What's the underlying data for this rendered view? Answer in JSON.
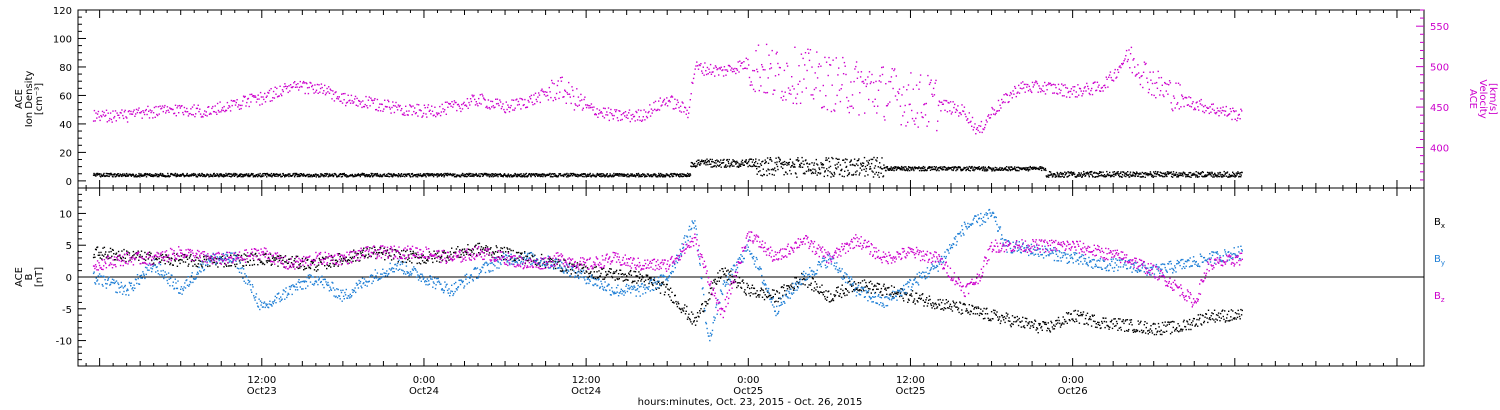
{
  "colors": {
    "density": "#000000",
    "velocity": "#cc00cc",
    "bx": "#000000",
    "by": "#1f7fd6",
    "bz": "#cc00cc",
    "axis": "#000000"
  },
  "chart_data": [
    {
      "type": "scatter",
      "panel": "top",
      "left_axis": {
        "label_lines": [
          "ACE",
          "Ion Density",
          "[cm⁻³]"
        ],
        "ylim": [
          -5,
          120
        ],
        "ticks": [
          0,
          20,
          40,
          60,
          80,
          100,
          120
        ]
      },
      "right_axis": {
        "label_lines": [
          "ACE",
          "Velocity",
          "[km/s]"
        ],
        "ylim": [
          350,
          570
        ],
        "ticks": [
          400,
          450,
          500,
          550
        ]
      },
      "series": [
        {
          "key": "density",
          "axis": "left",
          "segments": [
            {
              "t0": -0.5,
              "t1": 43.7,
              "base": 4.5,
              "jitter": 1.2
            },
            {
              "t0": 43.7,
              "t1": 48.5,
              "base": 13,
              "jitter": 3
            },
            {
              "t0": 48.5,
              "t1": 58,
              "base": 10,
              "jitter": 7
            },
            {
              "t0": 58,
              "t1": 70,
              "base": 9,
              "jitter": 1.5
            },
            {
              "t0": 70,
              "t1": 84.5,
              "base": 5,
              "jitter": 2
            }
          ]
        },
        {
          "key": "velocity",
          "axis": "right",
          "anchors": [
            [
              -0.5,
              440
            ],
            [
              2,
              440
            ],
            [
              4,
              445
            ],
            [
              6,
              448
            ],
            [
              8,
              445
            ],
            [
              10,
              455
            ],
            [
              12,
              462
            ],
            [
              14,
              475
            ],
            [
              16,
              475
            ],
            [
              18,
              460
            ],
            [
              20,
              455
            ],
            [
              22,
              450
            ],
            [
              24,
              445
            ],
            [
              26,
              450
            ],
            [
              28,
              460
            ],
            [
              30,
              450
            ],
            [
              32,
              460
            ],
            [
              34,
              475
            ],
            [
              36,
              450
            ],
            [
              38,
              440
            ],
            [
              40,
              440
            ],
            [
              42,
              460
            ],
            [
              43.5,
              445
            ],
            [
              44,
              500
            ],
            [
              46,
              495
            ],
            [
              48,
              505
            ],
            [
              50,
              490
            ],
            [
              52,
              490
            ],
            [
              54,
              480
            ],
            [
              56,
              475
            ],
            [
              58,
              470
            ],
            [
              60,
              460
            ],
            [
              62,
              455
            ],
            [
              64,
              445
            ],
            [
              65,
              420
            ],
            [
              66,
              445
            ],
            [
              68,
              475
            ],
            [
              70,
              475
            ],
            [
              72,
              470
            ],
            [
              74,
              475
            ],
            [
              75,
              490
            ],
            [
              76,
              515
            ],
            [
              78,
              480
            ],
            [
              80,
              460
            ],
            [
              82,
              450
            ],
            [
              84.5,
              440
            ]
          ],
          "spread_segments": [
            [
              33,
              36,
              15
            ],
            [
              48,
              62,
              35
            ],
            [
              76,
              80,
              20
            ]
          ]
        }
      ]
    },
    {
      "type": "scatter",
      "panel": "bottom",
      "left_axis": {
        "label_lines": [
          "ACE",
          "B",
          "[nT]"
        ],
        "ylim": [
          -14,
          14
        ],
        "ticks": [
          -10,
          -5,
          0,
          5,
          10
        ]
      },
      "series": [
        {
          "key": "bx",
          "name": "Bx",
          "label_base": "B",
          "label_sub": "x",
          "anchors": [
            [
              -0.5,
              4
            ],
            [
              4,
              3
            ],
            [
              8,
              2.5
            ],
            [
              12,
              3
            ],
            [
              16,
              2
            ],
            [
              20,
              4
            ],
            [
              24,
              3
            ],
            [
              28,
              4.5
            ],
            [
              32,
              3
            ],
            [
              36,
              1
            ],
            [
              40,
              0
            ],
            [
              42,
              -2
            ],
            [
              44,
              -7
            ],
            [
              46,
              1
            ],
            [
              48,
              -2
            ],
            [
              50,
              -3
            ],
            [
              52,
              0
            ],
            [
              54,
              -3
            ],
            [
              56,
              -1
            ],
            [
              58,
              -2
            ],
            [
              60,
              -3
            ],
            [
              62,
              -4
            ],
            [
              64,
              -5
            ],
            [
              66,
              -6
            ],
            [
              68,
              -7
            ],
            [
              70,
              -8
            ],
            [
              72,
              -6
            ],
            [
              74,
              -7
            ],
            [
              76,
              -7.5
            ],
            [
              78,
              -8
            ],
            [
              80,
              -7.8
            ],
            [
              82,
              -6
            ],
            [
              84.5,
              -6
            ]
          ]
        },
        {
          "key": "by",
          "name": "By",
          "label_base": "B",
          "label_sub": "y",
          "anchors": [
            [
              -0.5,
              0
            ],
            [
              2,
              -2
            ],
            [
              4,
              2
            ],
            [
              6,
              -2
            ],
            [
              8,
              3
            ],
            [
              10,
              3
            ],
            [
              12,
              -5
            ],
            [
              14,
              -2
            ],
            [
              16,
              0
            ],
            [
              18,
              -3
            ],
            [
              20,
              0
            ],
            [
              22,
              2
            ],
            [
              24,
              0
            ],
            [
              26,
              -2
            ],
            [
              28,
              1
            ],
            [
              30,
              3
            ],
            [
              32,
              3
            ],
            [
              34,
              2
            ],
            [
              36,
              0
            ],
            [
              38,
              -2
            ],
            [
              40,
              -2
            ],
            [
              42,
              0
            ],
            [
              44,
              9
            ],
            [
              45,
              -10
            ],
            [
              46,
              -2
            ],
            [
              48,
              5
            ],
            [
              50,
              -5
            ],
            [
              52,
              0
            ],
            [
              54,
              3
            ],
            [
              56,
              -2
            ],
            [
              58,
              -4
            ],
            [
              60,
              -1
            ],
            [
              62,
              2
            ],
            [
              64,
              8
            ],
            [
              66,
              10
            ],
            [
              67,
              5
            ],
            [
              70,
              4
            ],
            [
              72,
              3
            ],
            [
              74,
              2
            ],
            [
              76,
              2
            ],
            [
              78,
              1
            ],
            [
              80,
              2
            ],
            [
              82,
              3
            ],
            [
              84.5,
              4
            ]
          ]
        },
        {
          "key": "bz",
          "name": "Bz",
          "label_base": "B",
          "label_sub": "z",
          "anchors": [
            [
              -0.5,
              2
            ],
            [
              2,
              3
            ],
            [
              4,
              3
            ],
            [
              6,
              4
            ],
            [
              8,
              3
            ],
            [
              10,
              3
            ],
            [
              12,
              4
            ],
            [
              14,
              2
            ],
            [
              16,
              3
            ],
            [
              18,
              3
            ],
            [
              20,
              4
            ],
            [
              22,
              4
            ],
            [
              24,
              4
            ],
            [
              26,
              3
            ],
            [
              28,
              4
            ],
            [
              30,
              3
            ],
            [
              32,
              2
            ],
            [
              34,
              3
            ],
            [
              36,
              2
            ],
            [
              38,
              3
            ],
            [
              40,
              2
            ],
            [
              42,
              2
            ],
            [
              44,
              6
            ],
            [
              46,
              -6
            ],
            [
              48,
              7
            ],
            [
              50,
              3
            ],
            [
              52,
              6
            ],
            [
              54,
              3
            ],
            [
              56,
              6
            ],
            [
              58,
              3
            ],
            [
              60,
              4
            ],
            [
              62,
              3
            ],
            [
              64,
              -2
            ],
            [
              65,
              0
            ],
            [
              66,
              5
            ],
            [
              68,
              5
            ],
            [
              70,
              5
            ],
            [
              72,
              5
            ],
            [
              74,
              4
            ],
            [
              76,
              3
            ],
            [
              78,
              1
            ],
            [
              80,
              -2
            ],
            [
              81,
              -4
            ],
            [
              82,
              2
            ],
            [
              84.5,
              3
            ]
          ]
        }
      ]
    }
  ],
  "x_axis": {
    "tick_hours": [
      12,
      24,
      36,
      48,
      60,
      72
    ],
    "tick_labels_time": [
      "12:00",
      "0:00",
      "12:00",
      "0:00",
      "12:00",
      "0:00"
    ],
    "tick_labels_day": [
      "Oct23",
      "Oct24",
      "Oct24",
      "Oct25",
      "Oct25",
      "Oct26"
    ],
    "xlabel": "hours:minutes, Oct. 23, 2015 - Oct. 26, 2015"
  }
}
